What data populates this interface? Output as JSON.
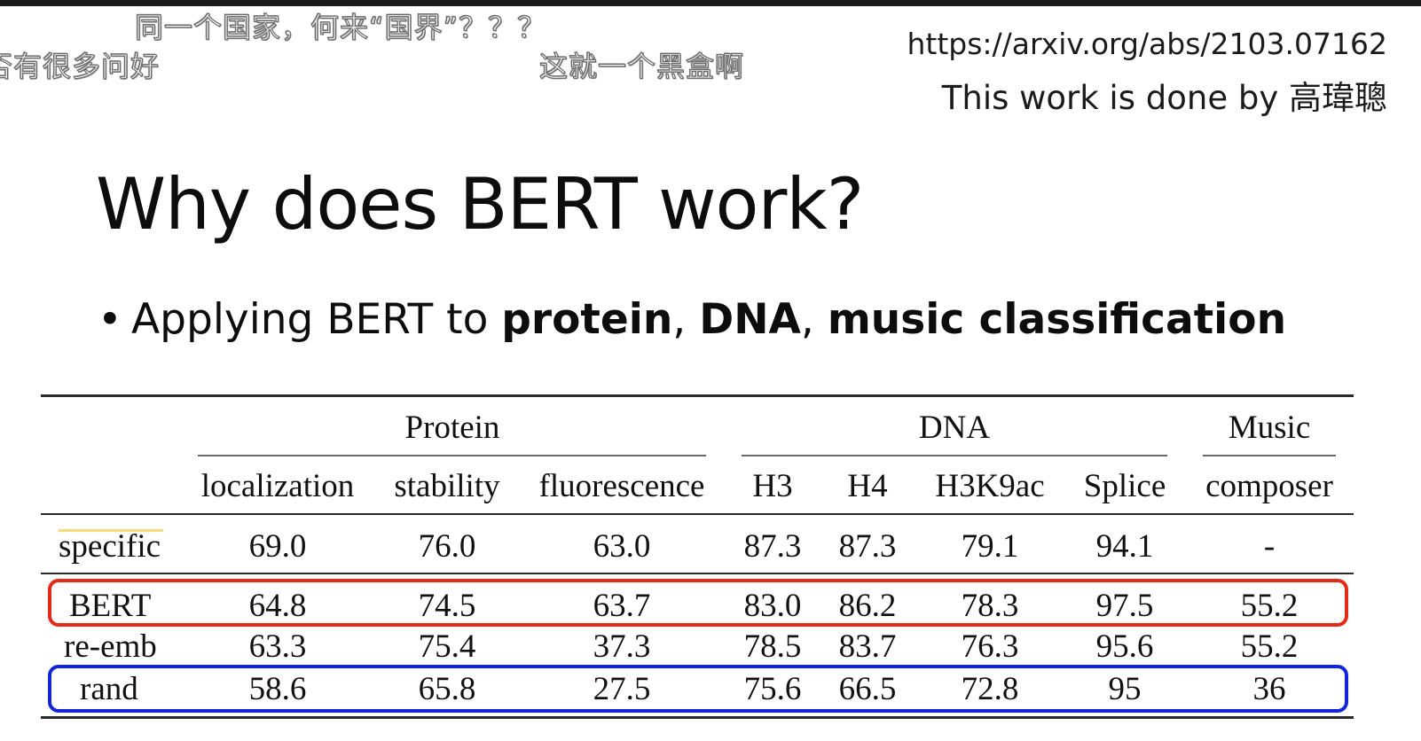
{
  "overlay": {
    "danmaku": [
      "同一个国家，何来“国界”？？？",
      "否有很多问好",
      "这就一个黑盒啊"
    ]
  },
  "slide": {
    "reference_url": "https://arxiv.org/abs/2103.07162",
    "credit": "This work is done by 高瑋聰",
    "title": "Why does BERT work?",
    "bullet": {
      "prefix": "Applying BERT to ",
      "bold_1": "protein",
      "sep_1": ", ",
      "bold_2": "DNA",
      "sep_2": ", ",
      "bold_3": "music classification"
    }
  },
  "table": {
    "groups": [
      "Protein",
      "DNA",
      "Music"
    ],
    "columns": [
      "localization",
      "stability",
      "fluorescence",
      "H3",
      "H4",
      "H3K9ac",
      "Splice",
      "composer"
    ],
    "rows": [
      {
        "label": "specific",
        "values": [
          "69.0",
          "76.0",
          "63.0",
          "87.3",
          "87.3",
          "79.1",
          "94.1",
          "-"
        ]
      },
      {
        "label": "BERT",
        "values": [
          "64.8",
          "74.5",
          "63.7",
          "83.0",
          "86.2",
          "78.3",
          "97.5",
          "55.2"
        ],
        "highlight": "#e52a18"
      },
      {
        "label": "re-emb",
        "values": [
          "63.3",
          "75.4",
          "37.3",
          "78.5",
          "83.7",
          "76.3",
          "95.6",
          "55.2"
        ]
      },
      {
        "label": "rand",
        "values": [
          "58.6",
          "65.8",
          "27.5",
          "75.6",
          "66.5",
          "72.8",
          "95",
          "36"
        ],
        "highlight": "#1424d8"
      }
    ]
  }
}
